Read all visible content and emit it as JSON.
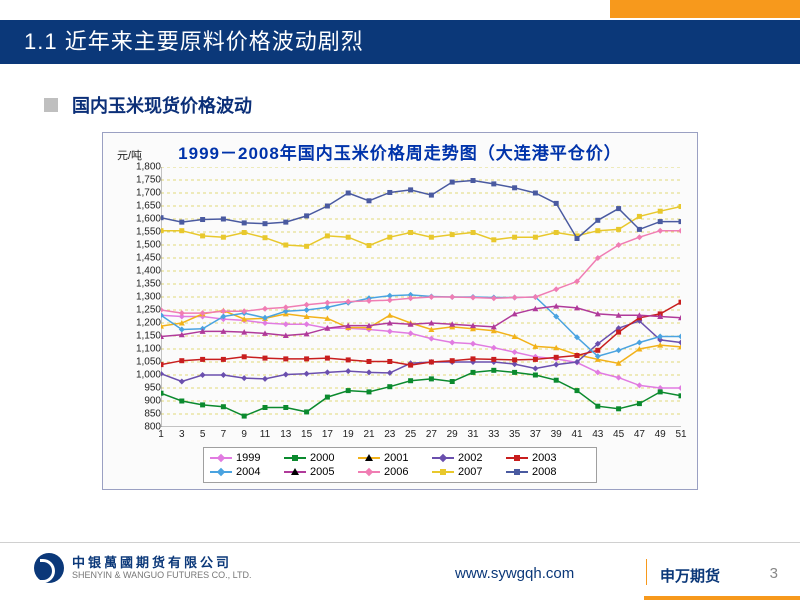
{
  "header": {
    "title": "1.1 近年来主要原料价格波动剧烈",
    "accent_color": "#f7991c",
    "bar_color": "#0b3879"
  },
  "subtitle": {
    "bullet_color": "#bfbfbf",
    "text": "国内玉米现货价格波动",
    "text_color": "#0b2f78"
  },
  "chart": {
    "type": "line",
    "title": "1999－2008年国内玉米价格周走势图（大连港平仓价）",
    "title_color": "#0033aa",
    "y_unit": "元/吨",
    "y_min": 800,
    "y_max": 1800,
    "y_step": 50,
    "x_ticks": [
      1,
      3,
      5,
      7,
      9,
      11,
      13,
      15,
      17,
      19,
      21,
      23,
      25,
      27,
      29,
      31,
      33,
      35,
      37,
      39,
      41,
      43,
      45,
      47,
      49,
      51
    ],
    "grid_color": "#d9cf50",
    "background": "#fbfbfb",
    "series": [
      {
        "name": "1999",
        "color": "#e17be1",
        "marker": "diamond",
        "y": [
          1230,
          1225,
          1225,
          1215,
          1210,
          1200,
          1195,
          1195,
          1180,
          1180,
          1175,
          1168,
          1160,
          1140,
          1125,
          1120,
          1105,
          1088,
          1070,
          1062,
          1048,
          1010,
          990,
          960,
          950,
          950
        ]
      },
      {
        "name": "2000",
        "color": "#0b8a2e",
        "marker": "square",
        "y": [
          930,
          900,
          885,
          878,
          842,
          875,
          875,
          858,
          915,
          940,
          935,
          955,
          978,
          985,
          975,
          1010,
          1018,
          1010,
          1000,
          980,
          940,
          880,
          870,
          890,
          935,
          920
        ]
      },
      {
        "name": "2001",
        "color": "#f2b21a",
        "marker": "triangle",
        "y": [
          1188,
          1200,
          1235,
          1248,
          1215,
          1218,
          1235,
          1225,
          1218,
          1182,
          1182,
          1230,
          1200,
          1175,
          1185,
          1178,
          1170,
          1148,
          1110,
          1105,
          1078,
          1060,
          1045,
          1100,
          1115,
          1108
        ]
      },
      {
        "name": "2002",
        "color": "#6a4fae",
        "marker": "diamond",
        "y": [
          1005,
          975,
          1000,
          1000,
          988,
          985,
          1002,
          1005,
          1010,
          1015,
          1010,
          1008,
          1045,
          1050,
          1050,
          1050,
          1050,
          1042,
          1025,
          1040,
          1050,
          1120,
          1180,
          1208,
          1135,
          1125
        ]
      },
      {
        "name": "2003",
        "color": "#c81e1e",
        "marker": "square",
        "y": [
          1040,
          1055,
          1060,
          1060,
          1070,
          1065,
          1062,
          1062,
          1065,
          1058,
          1052,
          1052,
          1038,
          1050,
          1055,
          1062,
          1060,
          1058,
          1060,
          1068,
          1075,
          1095,
          1165,
          1220,
          1235,
          1280
        ]
      },
      {
        "name": "2004",
        "color": "#4aa3e0",
        "marker": "diamond",
        "y": [
          1230,
          1175,
          1178,
          1225,
          1238,
          1220,
          1245,
          1250,
          1260,
          1278,
          1295,
          1305,
          1308,
          1302,
          1300,
          1300,
          1298,
          1298,
          1300,
          1225,
          1145,
          1072,
          1095,
          1125,
          1148,
          1148
        ]
      },
      {
        "name": "2005",
        "color": "#b03a9a",
        "marker": "triangle",
        "y": [
          1148,
          1155,
          1168,
          1168,
          1165,
          1160,
          1152,
          1158,
          1180,
          1190,
          1190,
          1200,
          1195,
          1200,
          1195,
          1190,
          1185,
          1235,
          1255,
          1265,
          1258,
          1235,
          1230,
          1230,
          1225,
          1220
        ]
      },
      {
        "name": "2006",
        "color": "#f07db3",
        "marker": "diamond",
        "y": [
          1250,
          1238,
          1238,
          1245,
          1245,
          1255,
          1260,
          1270,
          1278,
          1282,
          1285,
          1288,
          1295,
          1300,
          1300,
          1298,
          1295,
          1298,
          1300,
          1330,
          1360,
          1450,
          1500,
          1530,
          1555,
          1555
        ]
      },
      {
        "name": "2007",
        "color": "#e8c82c",
        "marker": "square",
        "y": [
          1555,
          1555,
          1535,
          1530,
          1548,
          1528,
          1500,
          1495,
          1535,
          1530,
          1498,
          1530,
          1548,
          1530,
          1540,
          1548,
          1520,
          1530,
          1530,
          1548,
          1535,
          1555,
          1560,
          1610,
          1630,
          1648
        ]
      },
      {
        "name": "2008",
        "color": "#4a5aa0",
        "marker": "square",
        "y": [
          1605,
          1588,
          1598,
          1600,
          1585,
          1582,
          1588,
          1612,
          1650,
          1700,
          1670,
          1702,
          1712,
          1692,
          1742,
          1748,
          1735,
          1720,
          1700,
          1660,
          1525,
          1595,
          1640,
          1560,
          1590,
          1590
        ]
      }
    ]
  },
  "footer": {
    "company_cn": "中银萬國期货有限公司",
    "company_en": "SHENYIN & WANGUO FUTURES CO., LTD.",
    "url": "www.sywgqh.com",
    "brand": "申万期货",
    "page": "3"
  }
}
